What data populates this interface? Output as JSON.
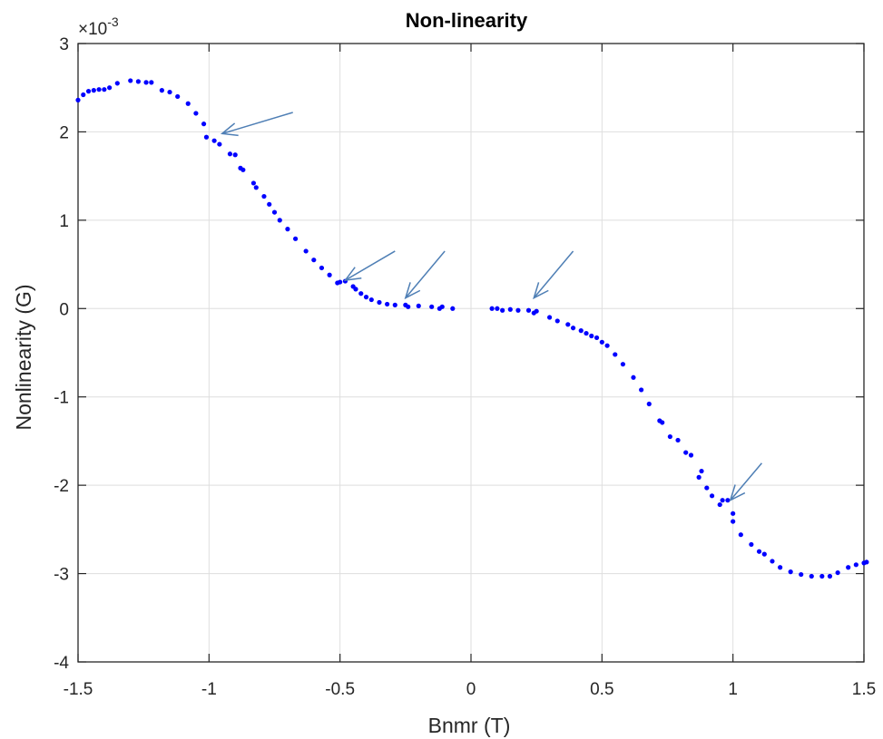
{
  "chart_data": {
    "type": "scatter",
    "title": "Non-linearity",
    "xlabel": "Bnmr (T)",
    "ylabel": "Nonlinearity (G)",
    "xlim": [
      -1.5,
      1.5
    ],
    "ylim": [
      -4,
      3
    ],
    "y_scale_exponent": "×10-3",
    "y_exponent_base": "×10",
    "y_exponent_power": "-3",
    "xticks": [
      -1.5,
      -1,
      -0.5,
      0,
      0.5,
      1,
      1.5
    ],
    "xtick_labels": [
      "-1.5",
      "-1",
      "-0.5",
      "0",
      "0.5",
      "1",
      "1.5"
    ],
    "yticks": [
      -4,
      -3,
      -2,
      -1,
      0,
      1,
      2,
      3
    ],
    "ytick_labels": [
      "-4",
      "-3",
      "-2",
      "-1",
      "0",
      "1",
      "2",
      "3"
    ],
    "grid": true,
    "legend": false,
    "marker_color": "#0000ff",
    "arrow_color": "#4f7fb5",
    "points": [
      [
        -1.5,
        2.36
      ],
      [
        -1.48,
        2.42
      ],
      [
        -1.46,
        2.46
      ],
      [
        -1.44,
        2.47
      ],
      [
        -1.42,
        2.48
      ],
      [
        -1.4,
        2.48
      ],
      [
        -1.38,
        2.5
      ],
      [
        -1.35,
        2.55
      ],
      [
        -1.3,
        2.58
      ],
      [
        -1.27,
        2.57
      ],
      [
        -1.24,
        2.56
      ],
      [
        -1.22,
        2.56
      ],
      [
        -1.18,
        2.47
      ],
      [
        -1.15,
        2.45
      ],
      [
        -1.12,
        2.4
      ],
      [
        -1.08,
        2.32
      ],
      [
        -1.05,
        2.21
      ],
      [
        -1.02,
        2.09
      ],
      [
        -1.01,
        1.94
      ],
      [
        -0.98,
        1.9
      ],
      [
        -0.96,
        1.86
      ],
      [
        -0.92,
        1.75
      ],
      [
        -0.9,
        1.74
      ],
      [
        -0.88,
        1.59
      ],
      [
        -0.87,
        1.57
      ],
      [
        -0.83,
        1.42
      ],
      [
        -0.82,
        1.37
      ],
      [
        -0.79,
        1.27
      ],
      [
        -0.77,
        1.18
      ],
      [
        -0.75,
        1.09
      ],
      [
        -0.73,
        1.0
      ],
      [
        -0.7,
        0.9
      ],
      [
        -0.67,
        0.79
      ],
      [
        -0.63,
        0.65
      ],
      [
        -0.6,
        0.55
      ],
      [
        -0.57,
        0.46
      ],
      [
        -0.54,
        0.38
      ],
      [
        -0.51,
        0.29
      ],
      [
        -0.5,
        0.3
      ],
      [
        -0.48,
        0.31
      ],
      [
        -0.45,
        0.25
      ],
      [
        -0.44,
        0.22
      ],
      [
        -0.42,
        0.17
      ],
      [
        -0.4,
        0.13
      ],
      [
        -0.38,
        0.1
      ],
      [
        -0.35,
        0.07
      ],
      [
        -0.32,
        0.05
      ],
      [
        -0.29,
        0.04
      ],
      [
        -0.25,
        0.04
      ],
      [
        -0.24,
        0.02
      ],
      [
        -0.2,
        0.03
      ],
      [
        -0.15,
        0.02
      ],
      [
        -0.12,
        0.0
      ],
      [
        -0.11,
        0.02
      ],
      [
        -0.07,
        0.0
      ],
      [
        0.08,
        0.0
      ],
      [
        0.1,
        0.0
      ],
      [
        0.12,
        -0.02
      ],
      [
        0.15,
        -0.01
      ],
      [
        0.18,
        -0.02
      ],
      [
        0.22,
        -0.02
      ],
      [
        0.24,
        -0.05
      ],
      [
        0.25,
        -0.03
      ],
      [
        0.3,
        -0.1
      ],
      [
        0.33,
        -0.14
      ],
      [
        0.37,
        -0.18
      ],
      [
        0.39,
        -0.22
      ],
      [
        0.42,
        -0.25
      ],
      [
        0.44,
        -0.28
      ],
      [
        0.46,
        -0.31
      ],
      [
        0.48,
        -0.33
      ],
      [
        0.5,
        -0.38
      ],
      [
        0.52,
        -0.42
      ],
      [
        0.55,
        -0.52
      ],
      [
        0.58,
        -0.63
      ],
      [
        0.62,
        -0.78
      ],
      [
        0.65,
        -0.92
      ],
      [
        0.68,
        -1.08
      ],
      [
        0.72,
        -1.27
      ],
      [
        0.73,
        -1.29
      ],
      [
        0.76,
        -1.45
      ],
      [
        0.79,
        -1.49
      ],
      [
        0.82,
        -1.63
      ],
      [
        0.84,
        -1.66
      ],
      [
        0.88,
        -1.84
      ],
      [
        0.87,
        -1.91
      ],
      [
        0.9,
        -2.03
      ],
      [
        0.92,
        -2.12
      ],
      [
        0.95,
        -2.22
      ],
      [
        0.96,
        -2.17
      ],
      [
        0.98,
        -2.17
      ],
      [
        1.0,
        -2.32
      ],
      [
        1.0,
        -2.41
      ],
      [
        1.03,
        -2.56
      ],
      [
        1.07,
        -2.67
      ],
      [
        1.1,
        -2.75
      ],
      [
        1.12,
        -2.78
      ],
      [
        1.15,
        -2.86
      ],
      [
        1.18,
        -2.93
      ],
      [
        1.22,
        -2.98
      ],
      [
        1.26,
        -3.01
      ],
      [
        1.3,
        -3.03
      ],
      [
        1.34,
        -3.03
      ],
      [
        1.37,
        -3.03
      ],
      [
        1.4,
        -2.99
      ],
      [
        1.44,
        -2.93
      ],
      [
        1.47,
        -2.9
      ],
      [
        1.5,
        -2.88
      ],
      [
        1.51,
        -2.87
      ]
    ],
    "arrows": [
      {
        "from": [
          -0.68,
          2.22
        ],
        "to": [
          -0.95,
          1.98
        ]
      },
      {
        "from": [
          -0.29,
          0.65
        ],
        "to": [
          -0.48,
          0.32
        ]
      },
      {
        "from": [
          -0.1,
          0.65
        ],
        "to": [
          -0.25,
          0.12
        ]
      },
      {
        "from": [
          0.39,
          0.65
        ],
        "to": [
          0.24,
          0.12
        ]
      },
      {
        "from": [
          1.11,
          -1.75
        ],
        "to": [
          0.99,
          -2.17
        ]
      }
    ]
  }
}
